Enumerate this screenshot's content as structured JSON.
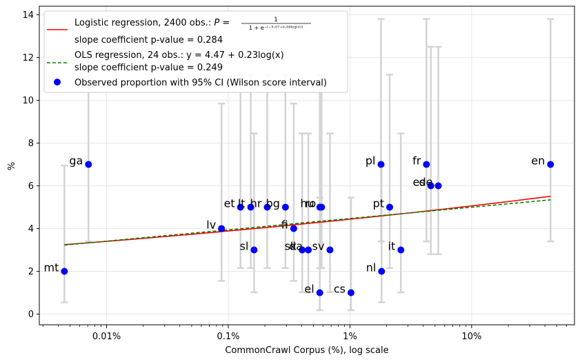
{
  "chart_data": {
    "type": "scatter",
    "xlabel": "CommonCrawl Corpus (%), log scale",
    "ylabel": "%",
    "xscale": "log",
    "xlim": [
      0.0028,
      70
    ],
    "ylim": [
      -0.5,
      14.4
    ],
    "grid": true,
    "legend_position": "top-left",
    "x_ticks": [
      {
        "value": 0.01,
        "label": "0.01%"
      },
      {
        "value": 0.1,
        "label": "0.1%"
      },
      {
        "value": 1,
        "label": "1%"
      },
      {
        "value": 10,
        "label": "10%"
      }
    ],
    "y_ticks": [
      0,
      2,
      4,
      6,
      8,
      10,
      12,
      14
    ],
    "legend": [
      {
        "kind": "line",
        "color": "#ff0000",
        "style": "solid",
        "text": "Logistic regression, 2400 obs.: P = 1/(1+e^-(-3.07+0.06log(x)))",
        "text_prefix": "Logistic regression, 2400 obs.: ",
        "formula_lhs": "P = ",
        "formula_num": "1",
        "formula_den": "1 + e⁻⁽⁻³·⁰⁷⁺⁰·⁰⁶ˡᵒᵍ⁽ˣ⁾⁾",
        "subtext": "slope coefficient p-value = 0.284"
      },
      {
        "kind": "dashed",
        "color": "#008000",
        "style": "dashed",
        "text": "OLS regression, 24 obs.: y = 4.47 + 0.23log(x)",
        "subtext": "slope coefficient p-value = 0.249"
      },
      {
        "kind": "marker",
        "color": "#0000ff",
        "text": "Observed proportion with 95% CI (Wilson score interval)"
      }
    ],
    "colors": {
      "points": "#0000ff",
      "logistic": "#ff0000",
      "ols": "#008000",
      "errorbars": "#d3d3d3",
      "grid": "#e6e6e6"
    },
    "regression": {
      "logistic": {
        "intercept": -3.07,
        "slope": 0.06
      },
      "ols": {
        "intercept": 4.47,
        "slope": 0.23
      }
    },
    "points": [
      {
        "label": "mt",
        "x": 0.0045,
        "y": 2,
        "ci": [
          0.55,
          6.95
        ]
      },
      {
        "label": "ga",
        "x": 0.0071,
        "y": 7,
        "ci": [
          3.4,
          13.8
        ]
      },
      {
        "label": "lv",
        "x": 0.088,
        "y": 4,
        "ci": [
          1.55,
          9.85
        ]
      },
      {
        "label": "et",
        "x": 0.126,
        "y": 5,
        "ci": [
          2.15,
          11.2
        ]
      },
      {
        "label": "lt",
        "x": 0.153,
        "y": 5,
        "ci": [
          2.15,
          11.2
        ]
      },
      {
        "label": "sl",
        "x": 0.163,
        "y": 3,
        "ci": [
          1.02,
          8.45
        ]
      },
      {
        "label": "hr",
        "x": 0.209,
        "y": 5,
        "ci": [
          2.15,
          11.2
        ]
      },
      {
        "label": "bg",
        "x": 0.295,
        "y": 5,
        "ci": [
          2.15,
          11.2
        ]
      },
      {
        "label": "fi",
        "x": 0.345,
        "y": 4,
        "ci": [
          1.55,
          9.85
        ]
      },
      {
        "label": "sk",
        "x": 0.405,
        "y": 3,
        "ci": [
          1.02,
          8.45
        ]
      },
      {
        "label": "da",
        "x": 0.455,
        "y": 3,
        "ci": [
          1.02,
          8.45
        ]
      },
      {
        "label": "hu",
        "x": 0.565,
        "y": 5,
        "ci": [
          2.15,
          11.2
        ]
      },
      {
        "label": "ro",
        "x": 0.585,
        "y": 5,
        "ci": [
          2.15,
          11.2
        ]
      },
      {
        "label": "el",
        "x": 0.565,
        "y": 1,
        "ci": [
          0.18,
          5.45
        ]
      },
      {
        "label": "sv",
        "x": 0.685,
        "y": 3,
        "ci": [
          1.02,
          8.45
        ]
      },
      {
        "label": "cs",
        "x": 1.02,
        "y": 1,
        "ci": [
          0.18,
          5.45
        ]
      },
      {
        "label": "pl",
        "x": 1.8,
        "y": 7,
        "ci": [
          3.4,
          13.8
        ]
      },
      {
        "label": "nl",
        "x": 1.82,
        "y": 2,
        "ci": [
          0.55,
          6.95
        ]
      },
      {
        "label": "pt",
        "x": 2.12,
        "y": 5,
        "ci": [
          2.15,
          11.2
        ]
      },
      {
        "label": "it",
        "x": 2.62,
        "y": 3,
        "ci": [
          1.02,
          8.45
        ]
      },
      {
        "label": "fr",
        "x": 4.25,
        "y": 7,
        "ci": [
          3.4,
          13.8
        ]
      },
      {
        "label": "es",
        "x": 4.62,
        "y": 6,
        "ci": [
          2.8,
          12.5
        ]
      },
      {
        "label": "de",
        "x": 5.32,
        "y": 6,
        "ci": [
          2.8,
          12.5
        ]
      },
      {
        "label": "en",
        "x": 44.5,
        "y": 7,
        "ci": [
          3.4,
          13.8
        ]
      }
    ]
  }
}
